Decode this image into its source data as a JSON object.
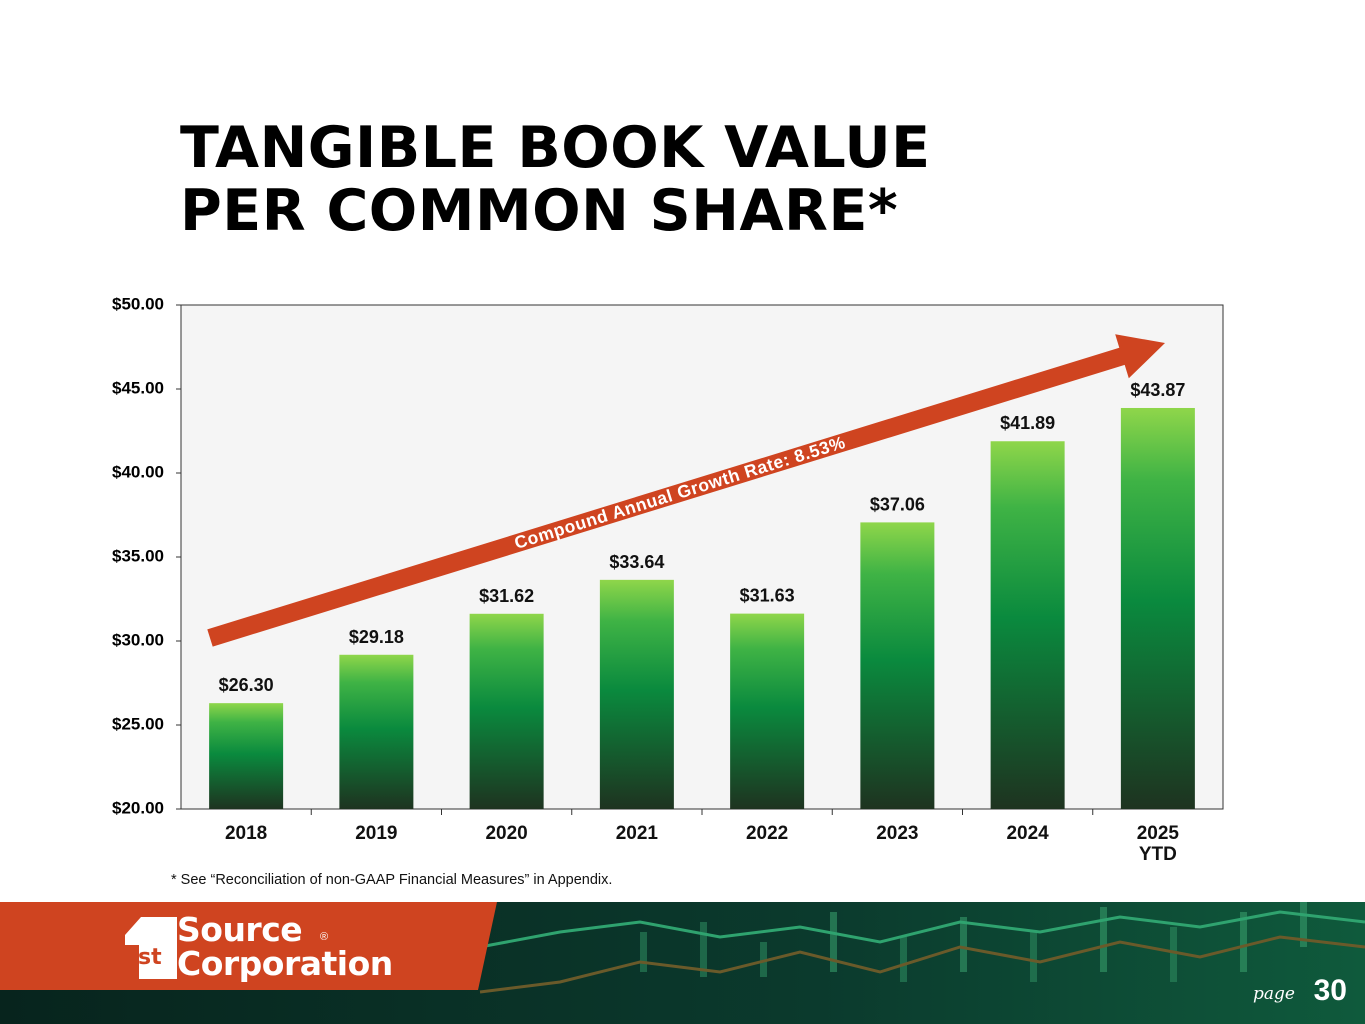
{
  "title": {
    "line1": "TANGIBLE BOOK VALUE",
    "line2": "PER COMMON SHARE*"
  },
  "chart_data": {
    "type": "bar",
    "categories": [
      [
        "2018"
      ],
      [
        "2019"
      ],
      [
        "2020"
      ],
      [
        "2021"
      ],
      [
        "2022"
      ],
      [
        "2023"
      ],
      [
        "2024"
      ],
      [
        "2025",
        "YTD"
      ]
    ],
    "values": [
      26.3,
      29.18,
      31.62,
      33.64,
      31.63,
      37.06,
      41.89,
      43.87
    ],
    "data_labels": [
      "$26.30",
      "$29.18",
      "$31.62",
      "$33.64",
      "$31.63",
      "$37.06",
      "$41.89",
      "$43.87"
    ],
    "ylim": [
      20,
      50
    ],
    "yticks": [
      20,
      25,
      30,
      35,
      40,
      45,
      50
    ],
    "ytick_labels": [
      "$20.00",
      "$25.00",
      "$30.00",
      "$35.00",
      "$40.00",
      "$45.00",
      "$50.00"
    ],
    "annotation": "Compound Annual Growth Rate: 8.53%",
    "grid": false,
    "colors": {
      "bar_top": "#8fd64a",
      "bar_mid": "#0a8a3e",
      "bar_bottom": "#1e3320",
      "arrow": "#cf4420",
      "plot_bg": "#f5f5f5"
    }
  },
  "footnote": "* See “Reconciliation of non-GAAP Financial Measures” in Appendix.",
  "footer": {
    "logo_mark": "st",
    "logo_line1": "Source",
    "logo_line2": "Corporation",
    "registered": "®",
    "page_label": "page",
    "page_number": "30",
    "colors": {
      "brand_orange": "#cf4420",
      "background_dark": "#0a2e26"
    }
  }
}
